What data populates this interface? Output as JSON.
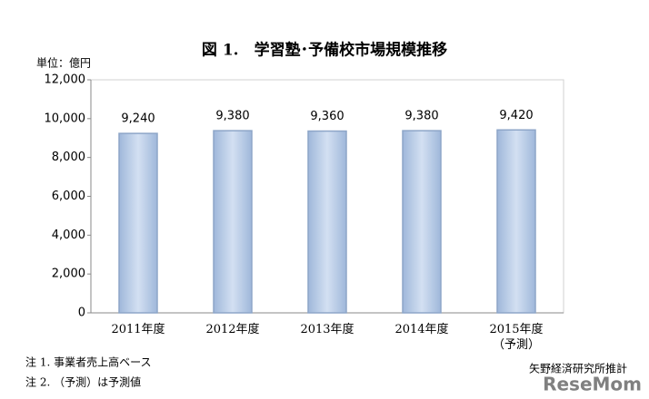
{
  "chart_data": {
    "type": "bar",
    "title": "図 1.　学習塾･予備校市場規模推移",
    "unit_label": "単位：億円",
    "categories": [
      "2011年度",
      "2012年度",
      "2013年度",
      "2014年度",
      "2015年度\n（予測）"
    ],
    "values": [
      9240,
      9380,
      9360,
      9380,
      9420
    ],
    "value_labels": [
      "9,240",
      "9,380",
      "9,360",
      "9,380",
      "9,420"
    ],
    "color": "#b9cde8",
    "ylim": [
      0,
      12000
    ],
    "yticks": [
      0,
      {
        "value": 2000,
        "label": "2,000"
      },
      {
        "value": 4000,
        "label": "4,000"
      },
      {
        "value": 6000,
        "label": "6,000"
      },
      {
        "value": 8000,
        "label": "8,000"
      },
      {
        "value": 10000,
        "label": "10,000"
      },
      {
        "value": 12000,
        "label": "12,000"
      }
    ],
    "grid": false,
    "notes": [
      "注 1.  事業者売上高ベース",
      "注 2. （予測）は予測値"
    ],
    "source": "矢野経済研究所推計",
    "watermark": "ReseMom"
  }
}
